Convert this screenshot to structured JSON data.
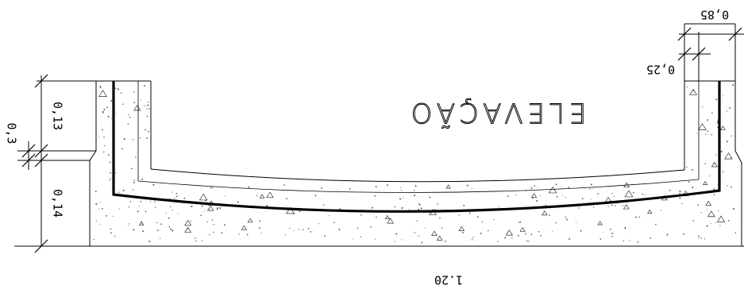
{
  "drawing": {
    "title": "ELEVAÇÃO",
    "dimensions": {
      "overall_length": "1.20",
      "top_offset": "0,85",
      "rim_width": "0,25",
      "upper_height": "0,13",
      "lower_height": "0,14",
      "step": "0,3"
    }
  }
}
